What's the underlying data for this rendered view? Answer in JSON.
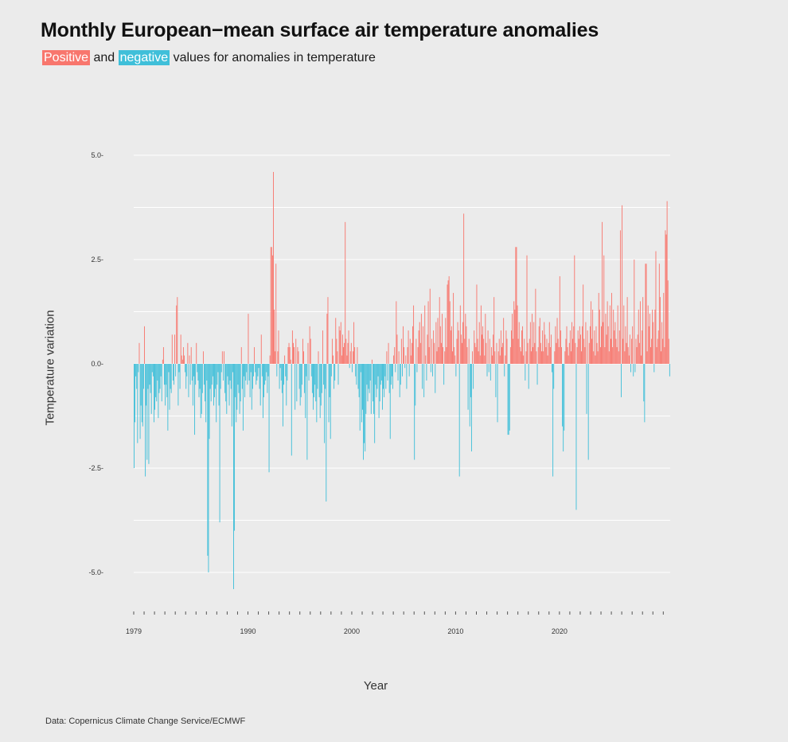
{
  "header": {
    "title": "Monthly European−mean surface air temperature anomalies",
    "subtitle_positive": "Positive",
    "subtitle_and": " and ",
    "subtitle_negative": "negative",
    "subtitle_rest": " values for anomalies in temperature"
  },
  "footer": {
    "source": "Data: Copernicus Climate Change Service/ECMWF"
  },
  "colors": {
    "positive": "#f8766d",
    "negative": "#3fbfd9",
    "background": "#ebebeb",
    "grid": "#ffffff"
  },
  "chart_data": {
    "type": "bar",
    "title": "Monthly European−mean surface air temperature anomalies",
    "xlabel": "Year",
    "ylabel": "Temperature variation",
    "start": "1979-01",
    "interval": "month",
    "ylim": [
      -5.8,
      5.0
    ],
    "yticks": [
      -5.0,
      -2.5,
      0.0,
      2.5,
      5.0
    ],
    "ytick_labels": [
      "-5.0",
      "-2.5",
      "0.0",
      "2.5",
      "5.0"
    ],
    "xtick_labels": [
      {
        "value": 1979,
        "label": "1979"
      },
      {
        "value": 1990,
        "label": "1990"
      },
      {
        "value": 2000,
        "label": "2000"
      },
      {
        "value": 2010,
        "label": "2010"
      },
      {
        "value": 2020,
        "label": "2020"
      }
    ],
    "grid": true,
    "values": [
      -2.5,
      -1.4,
      -0.3,
      -0.6,
      -1.9,
      -0.2,
      0.5,
      -1.8,
      -1.0,
      -1.4,
      -1.5,
      -0.6,
      0.9,
      -2.7,
      -1.0,
      -2.3,
      -0.6,
      -2.4,
      -0.5,
      -0.7,
      -1.2,
      -0.2,
      -0.3,
      -1.4,
      -1.1,
      -0.8,
      -0.9,
      -0.4,
      -1.3,
      -0.7,
      -0.6,
      -0.3,
      -0.9,
      0.1,
      0.4,
      -0.5,
      -1.0,
      -0.5,
      -0.8,
      -1.6,
      -0.2,
      -1.1,
      -0.6,
      -0.7,
      0.7,
      -0.4,
      -0.5,
      0.7,
      -0.3,
      1.4,
      1.6,
      -1.0,
      -0.2,
      -0.6,
      0.7,
      0.2,
      0.1,
      0.4,
      0.2,
      -0.2,
      -0.6,
      -0.3,
      0.5,
      -0.8,
      0.2,
      -0.5,
      0.4,
      -0.4,
      -1.0,
      -0.3,
      -1.7,
      -0.5,
      0.5,
      -0.2,
      -0.4,
      -0.8,
      -0.6,
      -1.3,
      -1.2,
      -0.7,
      0.3,
      -0.5,
      -0.9,
      -1.4,
      -0.4,
      -4.6,
      -5.0,
      -1.8,
      -0.6,
      -0.9,
      -0.5,
      -0.3,
      -1.0,
      -0.8,
      -0.6,
      -1.4,
      -0.5,
      -0.2,
      -1.0,
      -3.8,
      -0.6,
      -0.2,
      0.3,
      -0.4,
      0.3,
      -0.7,
      -0.9,
      -1.2,
      -0.3,
      -0.5,
      -1.0,
      -0.4,
      -0.6,
      -1.5,
      -0.2,
      -5.4,
      -4.0,
      -0.8,
      -1.4,
      -1.1,
      -0.5,
      -0.7,
      -1.2,
      -0.9,
      0.4,
      -0.6,
      -1.6,
      -0.3,
      -0.8,
      -0.4,
      -0.2,
      -0.5,
      1.2,
      -0.4,
      -0.8,
      -0.2,
      -1.1,
      -0.6,
      -0.3,
      0.4,
      -0.2,
      -0.5,
      -0.4,
      -0.3,
      -0.1,
      -0.6,
      -1.0,
      0.7,
      -0.3,
      -1.3,
      -0.8,
      -0.5,
      -0.4,
      -0.2,
      -0.7,
      -0.3,
      -2.6,
      0.2,
      2.8,
      2.8,
      2.6,
      4.6,
      1.3,
      0.3,
      2.4,
      -0.3,
      0.3,
      0.8,
      -0.6,
      -0.1,
      -0.4,
      -0.7,
      -1.5,
      -0.5,
      0.2,
      -0.3,
      -1.0,
      -0.4,
      0.4,
      0.5,
      0.4,
      0.1,
      -2.2,
      0.8,
      0.5,
      0.4,
      -1.1,
      0.6,
      -0.9,
      0.4,
      0.3,
      -0.6,
      -1.0,
      -0.8,
      -0.5,
      0.6,
      0.3,
      -0.7,
      -1.3,
      -0.3,
      -2.3,
      0.5,
      -0.4,
      0.9,
      0.6,
      -0.3,
      -0.7,
      -1.1,
      -0.8,
      -0.5,
      -0.9,
      -1.4,
      -0.6,
      0.3,
      -0.8,
      -1.3,
      -1.0,
      -0.7,
      0.8,
      -0.5,
      -1.9,
      -0.6,
      -3.3,
      1.2,
      1.6,
      -1.4,
      -0.8,
      -1.8,
      -0.3,
      0.6,
      0.2,
      -0.6,
      -0.4,
      1.1,
      0.6,
      0.3,
      -0.5,
      0.9,
      0.8,
      1.0,
      0.2,
      0.7,
      0.4,
      0.5,
      3.4,
      0.6,
      0.2,
      0.5,
      0.8,
      -0.1,
      0.3,
      0.5,
      -0.2,
      0.3,
      1.0,
      0.4,
      -0.3,
      -0.5,
      0.4,
      -0.6,
      -0.8,
      -1.6,
      -0.2,
      -1.4,
      -1.1,
      -2.3,
      -1.9,
      -2.1,
      -1.2,
      -0.5,
      -0.9,
      -0.6,
      -0.7,
      -0.4,
      -1.2,
      0.1,
      -0.9,
      -1.2,
      -1.9,
      -0.5,
      -0.8,
      -0.6,
      -0.3,
      -1.3,
      -0.9,
      -0.5,
      -0.4,
      -1.1,
      -0.6,
      -0.8,
      -0.3,
      -0.6,
      0.3,
      -0.4,
      0.5,
      -0.7,
      -1.8,
      -0.5,
      -0.3,
      -0.6,
      0.2,
      0.4,
      -0.2,
      1.5,
      0.7,
      -0.4,
      0.3,
      -0.8,
      -0.5,
      0.6,
      -0.3,
      0.9,
      0.4,
      -0.1,
      0.2,
      -0.6,
      0.4,
      0.8,
      -0.3,
      0.6,
      0.2,
      0.5,
      0.9,
      1.4,
      -2.3,
      -1.0,
      0.6,
      -0.2,
      0.4,
      0.8,
      1.0,
      0.5,
      1.2,
      -0.6,
      0.9,
      -0.8,
      1.4,
      0.2,
      -0.4,
      0.7,
      1.5,
      0.4,
      1.8,
      -0.2,
      0.6,
      -0.3,
      0.8,
      0.5,
      -0.7,
      1.0,
      0.3,
      1.1,
      0.4,
      1.6,
      0.9,
      0.5,
      1.2,
      0.4,
      -0.5,
      0.3,
      1.1,
      0.4,
      1.9,
      2.0,
      2.1,
      1.5,
      0.8,
      0.9,
      0.3,
      1.7,
      0.4,
      0.2,
      -0.3,
      0.6,
      1.0,
      0.8,
      -2.7,
      1.4,
      0.7,
      0.5,
      1.0,
      3.6,
      0.6,
      1.2,
      0.9,
      0.4,
      -1.1,
      0.6,
      -1.5,
      -0.8,
      -2.1,
      0.3,
      -0.6,
      0.8,
      0.5,
      0.4,
      1.9,
      0.6,
      0.3,
      1.0,
      0.2,
      1.4,
      0.7,
      0.9,
      0.6,
      0.2,
      1.2,
      0.5,
      -0.3,
      0.8,
      -0.2,
      0.6,
      -0.4,
      0.4,
      0.2,
      0.7,
      1.6,
      0.3,
      -0.8,
      0.5,
      -1.4,
      0.3,
      0.6,
      0.2,
      0.8,
      0.4,
      0.5,
      1.1,
      -0.3,
      0.2,
      0.8,
      0.6,
      -1.7,
      -1.7,
      -1.6,
      0.4,
      0.8,
      1.2,
      0.6,
      1.5,
      1.3,
      2.8,
      2.8,
      1.4,
      0.6,
      1.0,
      0.4,
      0.3,
      0.8,
      0.9,
      0.2,
      0.6,
      -0.4,
      0.3,
      2.6,
      0.5,
      -0.6,
      0.6,
      1.0,
      0.3,
      1.2,
      0.4,
      1.0,
      0.5,
      1.8,
      0.3,
      -0.5,
      0.4,
      0.9,
      1.1,
      0.5,
      0.3,
      0.8,
      0.3,
      1.0,
      0.7,
      0.4,
      0.6,
      0.2,
      0.5,
      1.0,
      0.4,
      0.7,
      -0.2,
      -2.7,
      -0.6,
      0.3,
      0.9,
      0.5,
      1.1,
      0.6,
      0.4,
      2.1,
      0.8,
      0.4,
      -1.5,
      -2.1,
      -1.6,
      0.3,
      0.6,
      0.9,
      0.4,
      0.2,
      0.5,
      0.8,
      0.3,
      1.0,
      0.6,
      0.9,
      2.6,
      0.5,
      -3.5,
      0.4,
      0.8,
      0.6,
      0.9,
      0.7,
      0.3,
      0.9,
      1.9,
      0.6,
      0.4,
      1.0,
      -1.2,
      0.8,
      -2.3,
      0.5,
      0.9,
      1.5,
      0.6,
      1.3,
      0.3,
      0.8,
      0.2,
      0.9,
      0.5,
      0.3,
      1.7,
      1.3,
      0.4,
      0.9,
      3.4,
      1.0,
      2.6,
      0.4,
      1.2,
      0.7,
      1.5,
      0.9,
      0.3,
      1.4,
      0.6,
      1.7,
      0.4,
      1.3,
      0.8,
      1.0,
      0.6,
      0.4,
      1.4,
      0.3,
      0.8,
      3.2,
      -0.8,
      3.8,
      0.6,
      1.4,
      0.3,
      0.9,
      0.5,
      1.6,
      0.4,
      0.2,
      0.7,
      -0.2,
      0.6,
      0.9,
      -0.3,
      2.5,
      -0.2,
      0.6,
      0.4,
      0.7,
      1.3,
      0.5,
      1.5,
      0.2,
      0.8,
      1.6,
      -0.9,
      -1.4,
      2.4,
      2.4,
      0.3,
      1.4,
      0.9,
      1.2,
      0.4,
      0.6,
      1.3,
      1.0,
      -0.2,
      1.3,
      2.7,
      0.4,
      0.6,
      0.8,
      2.4,
      1.6,
      0.3,
      1.0,
      0.6,
      1.7,
      0.4,
      3.2,
      3.1,
      3.9,
      2.0,
      0.6,
      -0.3
    ]
  }
}
